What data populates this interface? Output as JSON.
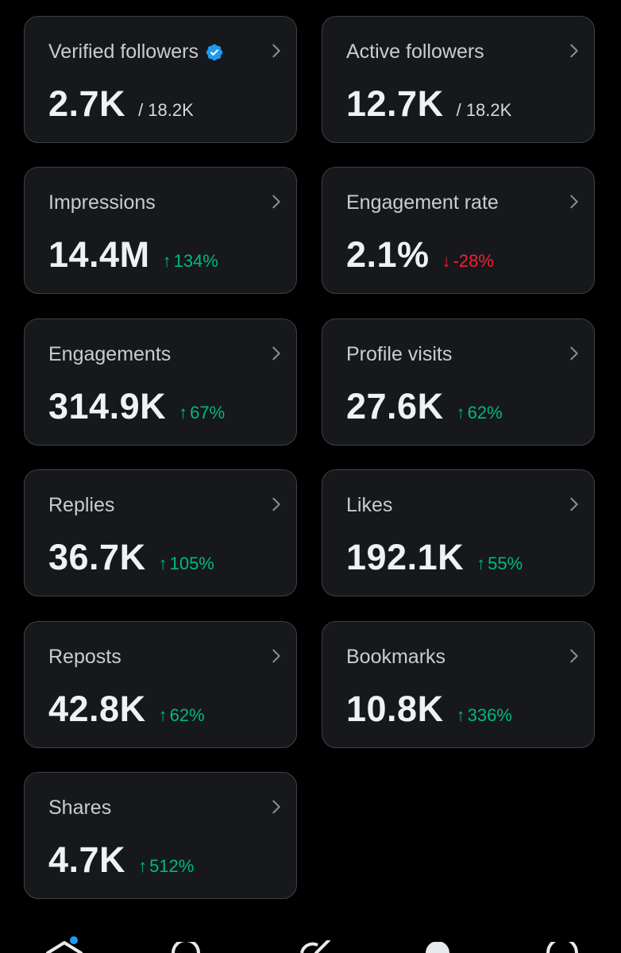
{
  "colors": {
    "background": "#000000",
    "card": "#16181c",
    "card_border": "#3e4144",
    "positive": "#00ba7c",
    "negative": "#f4212e",
    "verified": "#1d9bf0"
  },
  "cards": [
    {
      "label": "Verified followers",
      "value": "2.7K",
      "total": "/ 18.2K",
      "badge": "verified-badge-icon"
    },
    {
      "label": "Active followers",
      "value": "12.7K",
      "total": "/ 18.2K"
    },
    {
      "label": "Impressions",
      "value": "14.4M",
      "arrow": "↑",
      "delta": "134%",
      "direction": "up"
    },
    {
      "label": "Engagement rate",
      "value": "2.1%",
      "arrow": "↓",
      "delta": "-28%",
      "direction": "down"
    },
    {
      "label": "Engagements",
      "value": "314.9K",
      "arrow": "↑",
      "delta": "67%",
      "direction": "up"
    },
    {
      "label": "Profile visits",
      "value": "27.6K",
      "arrow": "↑",
      "delta": "62%",
      "direction": "up"
    },
    {
      "label": "Replies",
      "value": "36.7K",
      "arrow": "↑",
      "delta": "105%",
      "direction": "up"
    },
    {
      "label": "Likes",
      "value": "192.1K",
      "arrow": "↑",
      "delta": "55%",
      "direction": "up"
    },
    {
      "label": "Reposts",
      "value": "42.8K",
      "arrow": "↑",
      "delta": "62%",
      "direction": "up"
    },
    {
      "label": "Bookmarks",
      "value": "10.8K",
      "arrow": "↑",
      "delta": "336%",
      "direction": "up"
    },
    {
      "label": "Shares",
      "value": "4.7K",
      "arrow": "↑",
      "delta": "512%",
      "direction": "up"
    }
  ],
  "bottom_nav": {
    "icons": [
      "home-icon",
      "search-icon",
      "grok-icon",
      "profile-icon",
      "messages-icon"
    ],
    "home_has_notification": true
  }
}
